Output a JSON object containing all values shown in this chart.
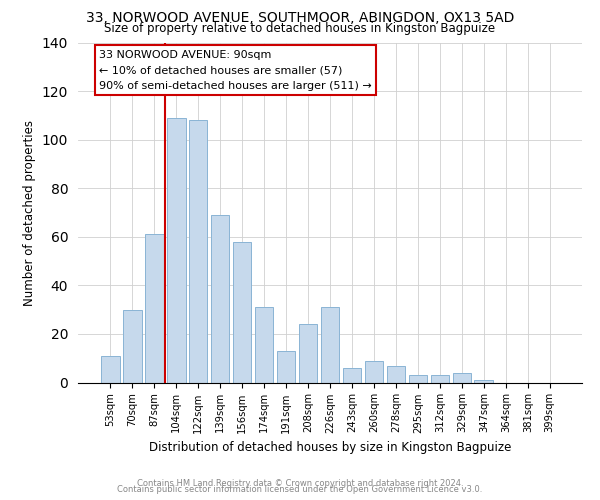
{
  "title": "33, NORWOOD AVENUE, SOUTHMOOR, ABINGDON, OX13 5AD",
  "subtitle": "Size of property relative to detached houses in Kingston Bagpuize",
  "xlabel": "Distribution of detached houses by size in Kingston Bagpuize",
  "ylabel": "Number of detached properties",
  "bar_labels": [
    "53sqm",
    "70sqm",
    "87sqm",
    "104sqm",
    "122sqm",
    "139sqm",
    "156sqm",
    "174sqm",
    "191sqm",
    "208sqm",
    "226sqm",
    "243sqm",
    "260sqm",
    "278sqm",
    "295sqm",
    "312sqm",
    "329sqm",
    "347sqm",
    "364sqm",
    "381sqm",
    "399sqm"
  ],
  "bar_heights": [
    11,
    30,
    61,
    109,
    108,
    69,
    58,
    31,
    13,
    24,
    31,
    6,
    9,
    7,
    3,
    3,
    4,
    1,
    0,
    0,
    0
  ],
  "bar_color": "#c6d9ec",
  "bar_edge_color": "#8ab4d4",
  "vline_x": 2.5,
  "vline_color": "#cc0000",
  "ylim": [
    0,
    140
  ],
  "yticks": [
    0,
    20,
    40,
    60,
    80,
    100,
    120,
    140
  ],
  "annotation_title": "33 NORWOOD AVENUE: 90sqm",
  "annotation_line1": "← 10% of detached houses are smaller (57)",
  "annotation_line2": "90% of semi-detached houses are larger (511) →",
  "annotation_box_color": "#ffffff",
  "annotation_box_edge": "#cc0000",
  "footer1": "Contains HM Land Registry data © Crown copyright and database right 2024.",
  "footer2": "Contains public sector information licensed under the Open Government Licence v3.0."
}
